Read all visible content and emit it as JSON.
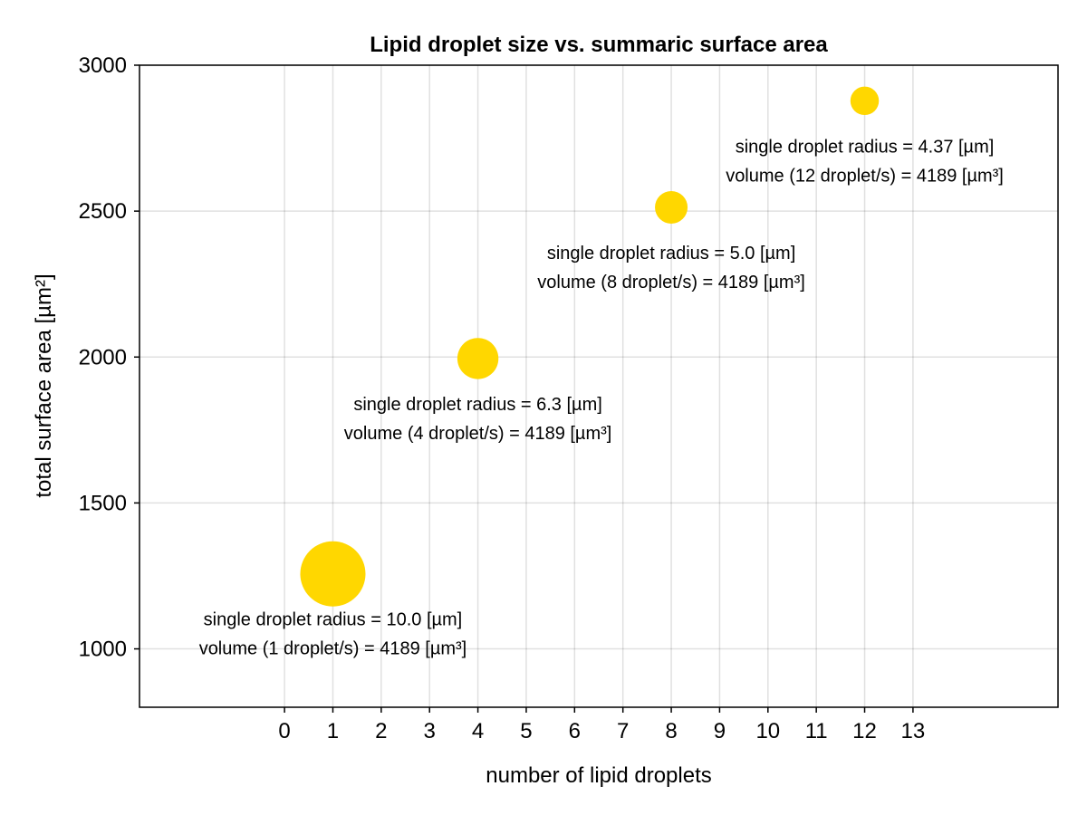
{
  "chart_data": {
    "type": "scatter",
    "title": "Lipid droplet size vs. summaric surface area",
    "xlabel": "number of lipid droplets",
    "ylabel": "total surface area [µm²]",
    "xlim": [
      -3,
      16
    ],
    "ylim": [
      800,
      3000
    ],
    "x_ticks": [
      0,
      1,
      2,
      3,
      4,
      5,
      6,
      7,
      8,
      9,
      10,
      11,
      12,
      13
    ],
    "y_ticks": [
      1000,
      1500,
      2000,
      2500,
      3000
    ],
    "grid": true,
    "marker_color": "#FFD700",
    "points": [
      {
        "x": 1,
        "y": 1257,
        "radius": 10.0,
        "annotation": [
          "single droplet radius = 10.0 [µm]",
          "volume (1 droplet/s) = 4189 [µm³]"
        ]
      },
      {
        "x": 4,
        "y": 1995,
        "radius": 6.3,
        "annotation": [
          "single droplet radius = 6.3 [µm]",
          "volume (4 droplet/s) = 4189 [µm³]"
        ]
      },
      {
        "x": 8,
        "y": 2513,
        "radius": 5.0,
        "annotation": [
          "single droplet radius = 5.0 [µm]",
          "volume (8 droplet/s) = 4189 [µm³]"
        ]
      },
      {
        "x": 12,
        "y": 2878,
        "radius": 4.37,
        "annotation": [
          "single droplet radius = 4.37 [µm]",
          "volume (12 droplet/s) = 4189 [µm³]"
        ]
      }
    ]
  }
}
